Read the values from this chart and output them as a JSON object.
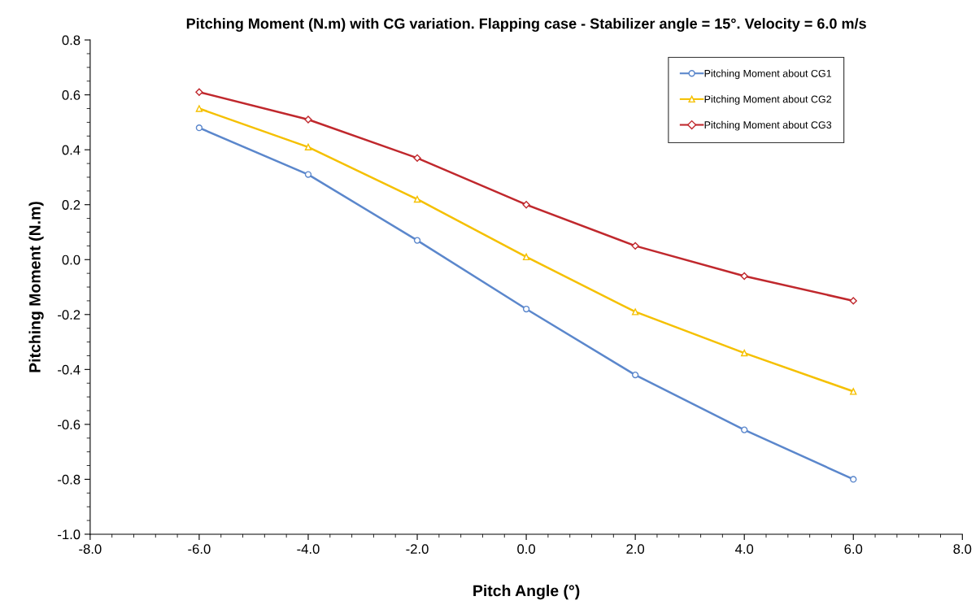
{
  "chart_data": {
    "type": "line",
    "title": "Pitching Moment (N.m) with CG variation. Flapping case - Stabilizer angle = 15°. Velocity = 6.0 m/s",
    "xlabel": "Pitch Angle (°)",
    "ylabel": "Pitching Moment (N.m)",
    "x": [
      -6,
      -4,
      -2,
      0,
      2,
      4,
      6
    ],
    "series": [
      {
        "name": "Pitching Moment about CG1",
        "color": "#5b87cc",
        "marker": "circle",
        "values": [
          0.48,
          0.31,
          0.07,
          -0.18,
          -0.42,
          -0.62,
          -0.8
        ]
      },
      {
        "name": "Pitching Moment about CG2",
        "color": "#f5c000",
        "marker": "triangle",
        "values": [
          0.55,
          0.41,
          0.22,
          0.01,
          -0.19,
          -0.34,
          -0.48
        ]
      },
      {
        "name": "Pitching Moment about CG3",
        "color": "#c0282d",
        "marker": "diamond",
        "values": [
          0.61,
          0.51,
          0.37,
          0.2,
          0.05,
          -0.06,
          -0.15
        ]
      }
    ],
    "xlim": [
      -8,
      8
    ],
    "xticks": [
      {
        "value": -8,
        "label": "-8.0"
      },
      {
        "value": -6,
        "label": "-6.0"
      },
      {
        "value": -4,
        "label": "-4.0"
      },
      {
        "value": -2,
        "label": "-2.0"
      },
      {
        "value": 0,
        "label": "0.0"
      },
      {
        "value": 2,
        "label": "2.0"
      },
      {
        "value": 4,
        "label": "4.0"
      },
      {
        "value": 6,
        "label": "6.0"
      },
      {
        "value": 8,
        "label": "8.0"
      }
    ],
    "ylim": [
      -1.0,
      0.8
    ],
    "yticks": [
      {
        "value": -1.0,
        "label": "-1.0"
      },
      -0.8,
      -0.6,
      -0.4,
      -0.2,
      {
        "value": 0,
        "label": "0.0"
      },
      0.2,
      0.4,
      0.6,
      0.8
    ],
    "grid": false,
    "legend": "top right",
    "line_style": "solid"
  }
}
